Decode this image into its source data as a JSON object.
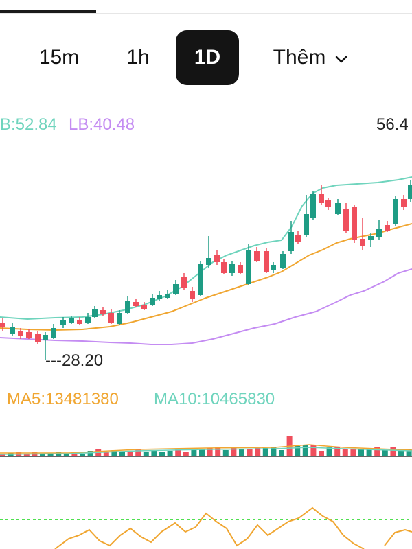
{
  "tabs": [
    {
      "label": "15m",
      "active": false
    },
    {
      "label": "1h",
      "active": false
    },
    {
      "label": "1D",
      "active": true
    },
    {
      "label": "Thêm",
      "active": false,
      "icon": "chevron-down-icon"
    }
  ],
  "price_chart": {
    "legend": {
      "ub": "B:52.84",
      "lb": "LB:40.48"
    },
    "high_label": "56.4",
    "low_label": "---28.20",
    "colors": {
      "up": "#1e9c84",
      "down": "#ef4f5d",
      "ub": "#6fd4bd",
      "mid": "#f0a631",
      "lb": "#c48cf2"
    }
  },
  "volume_chart": {
    "ma5_label": "MA5:13481380",
    "ma10_label": "MA10:10465830",
    "colors": {
      "ma5": "#f0a631",
      "ma10": "#6fd4bd"
    }
  },
  "oscillator": {
    "colors": {
      "line": "#f0a631",
      "level": "#4fe04f"
    }
  }
}
